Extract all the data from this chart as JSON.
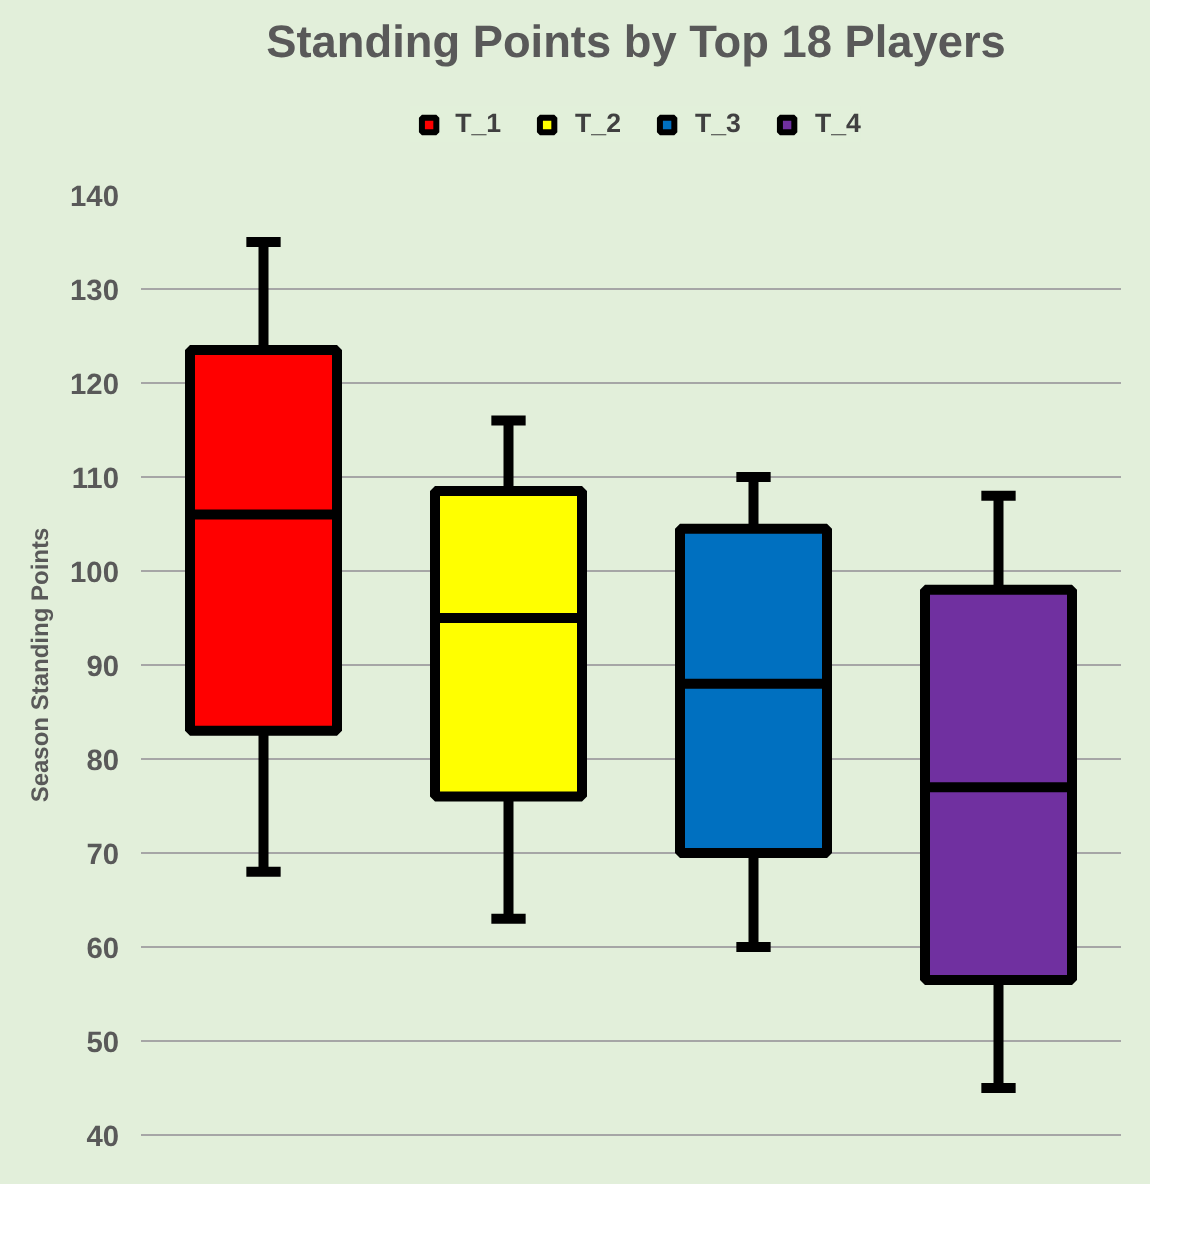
{
  "chart_data": {
    "type": "box",
    "title": "Standing Points by Top 18 Players",
    "ylabel": "Season Standing Points",
    "categories": [
      null,
      null,
      null,
      null
    ],
    "series": [
      {
        "name": "T_1",
        "color": "#ff0000",
        "boxes": [
          {
            "low": 68,
            "q1": 83,
            "median": 106,
            "q3": 123.5,
            "high": 135
          },
          null,
          null,
          null
        ]
      },
      {
        "name": "T_2",
        "color": "#ffff00",
        "boxes": [
          null,
          {
            "low": 63,
            "q1": 76,
            "median": 95,
            "q3": 108.5,
            "high": 116
          },
          null,
          null
        ]
      },
      {
        "name": "T_3",
        "color": "#0070c0",
        "boxes": [
          null,
          null,
          {
            "low": 60,
            "q1": 70,
            "median": 88,
            "q3": 104.5,
            "high": 110
          },
          null
        ]
      },
      {
        "name": "T_4",
        "color": "#7030a0",
        "boxes": [
          null,
          null,
          null,
          {
            "low": 45,
            "q1": 56.5,
            "median": 77,
            "q3": 98,
            "high": 108
          }
        ]
      }
    ],
    "ylim": [
      40,
      140
    ],
    "yticks": [
      40,
      50,
      60,
      70,
      80,
      90,
      100,
      110,
      120,
      130,
      140
    ],
    "grid": "y",
    "legend": "top"
  }
}
